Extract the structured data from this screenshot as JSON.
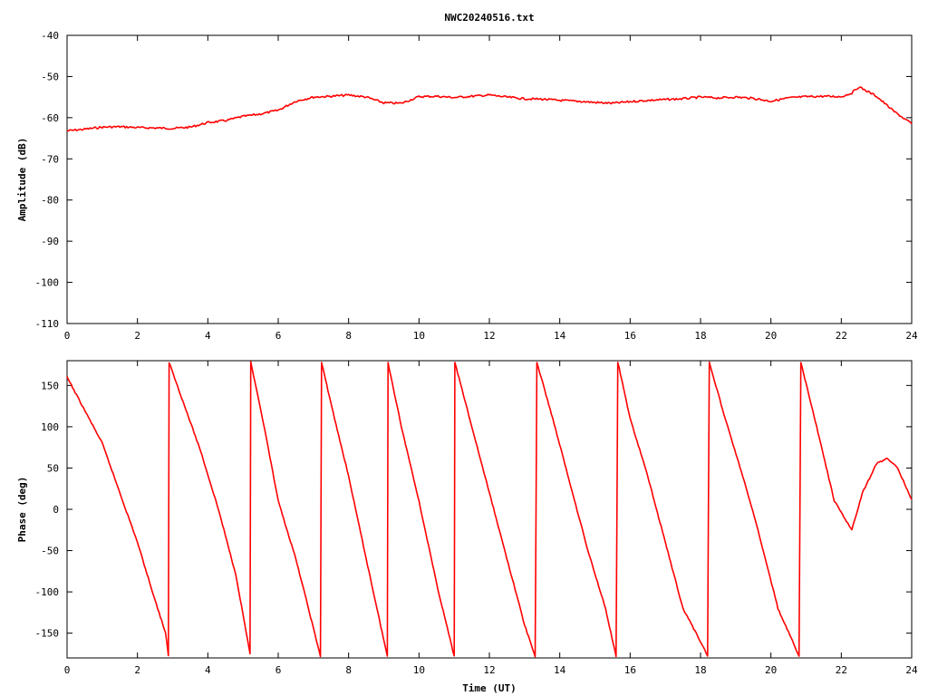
{
  "title": "NWC20240516.txt",
  "colors": {
    "trace": "#ff0000",
    "frame": "#000000",
    "background": "#ffffff"
  },
  "chart_data": [
    {
      "type": "line",
      "title": "NWC20240516.txt",
      "xlabel": "",
      "ylabel": "Amplitude (dB)",
      "xlim": [
        0,
        24
      ],
      "ylim": [
        -110,
        -40
      ],
      "xticks": [
        0,
        2,
        4,
        6,
        8,
        10,
        12,
        14,
        16,
        18,
        20,
        22,
        24
      ],
      "yticks": [
        -110,
        -100,
        -90,
        -80,
        -70,
        -60,
        -50,
        -40
      ],
      "grid": false,
      "legend": "none",
      "series": [
        {
          "color": "#ff0000",
          "x": [
            0,
            0.5,
            1,
            1.5,
            2,
            2.5,
            3,
            3.5,
            4,
            4.5,
            5,
            5.5,
            6,
            6.5,
            7,
            7.5,
            8,
            8.5,
            9,
            9.5,
            10,
            10.5,
            11,
            11.5,
            12,
            12.5,
            13,
            13.5,
            14,
            14.5,
            15,
            15.5,
            16,
            16.5,
            17,
            17.5,
            18,
            18.5,
            19,
            19.5,
            20,
            20.5,
            21,
            21.5,
            22,
            22.3,
            22.5,
            23,
            23.5,
            24
          ],
          "y": [
            -63.2,
            -62.8,
            -62.3,
            -62.2,
            -62.4,
            -62.5,
            -62.6,
            -62.3,
            -61.2,
            -60.7,
            -59.7,
            -59.1,
            -58.2,
            -56.0,
            -55.0,
            -54.8,
            -54.5,
            -55.0,
            -56.4,
            -56.5,
            -54.9,
            -54.8,
            -55.1,
            -54.8,
            -54.5,
            -55.0,
            -55.4,
            -55.5,
            -55.8,
            -56.0,
            -56.3,
            -56.5,
            -56.1,
            -55.8,
            -55.6,
            -55.4,
            -55.0,
            -55.2,
            -55.0,
            -55.3,
            -56.0,
            -55.2,
            -54.9,
            -54.8,
            -54.9,
            -54.0,
            -52.5,
            -54.8,
            -58.5,
            -61.5
          ]
        }
      ]
    },
    {
      "type": "line",
      "title": "",
      "xlabel": "Time (UT)",
      "ylabel": "Phase (deg)",
      "xlim": [
        0,
        24
      ],
      "ylim": [
        -180,
        180
      ],
      "xticks": [
        0,
        2,
        4,
        6,
        8,
        10,
        12,
        14,
        16,
        18,
        20,
        22,
        24
      ],
      "yticks": [
        -150,
        -100,
        -50,
        0,
        50,
        100,
        150
      ],
      "grid": false,
      "legend": "none",
      "phase_wrap_deg": [
        -180,
        180
      ],
      "series": [
        {
          "color": "#ff0000",
          "x": [
            0,
            0.5,
            1,
            1.5,
            2,
            2.5,
            2.8,
            2.88,
            2.9,
            3.3,
            3.8,
            4.3,
            4.8,
            5.2,
            5.22,
            5.6,
            6.0,
            6.5,
            6.8,
            7.2,
            7.23,
            7.6,
            8.0,
            8.5,
            9.1,
            9.12,
            9.5,
            10.0,
            10.5,
            11.0,
            11.02,
            11.5,
            12.0,
            12.5,
            13.0,
            13.3,
            13.35,
            13.8,
            14.3,
            14.8,
            15.3,
            15.6,
            15.65,
            16.0,
            16.5,
            17.0,
            17.5,
            18.0,
            18.2,
            18.25,
            18.7,
            19.2,
            19.6,
            20.2,
            20.8,
            20.85,
            21.3,
            21.8,
            22.3,
            22.6,
            23.0,
            23.3,
            23.6,
            24.0
          ],
          "y": [
            160,
            120,
            80,
            20,
            -40,
            -110,
            -150,
            -178,
            178,
            130,
            70,
            0,
            -80,
            -175,
            178,
            100,
            10,
            -60,
            -110,
            -178,
            178,
            110,
            40,
            -60,
            -178,
            178,
            100,
            10,
            -90,
            -178,
            178,
            100,
            20,
            -60,
            -140,
            -178,
            178,
            110,
            30,
            -50,
            -120,
            -178,
            178,
            110,
            40,
            -40,
            -120,
            -160,
            -178,
            178,
            110,
            40,
            -20,
            -120,
            -178,
            178,
            100,
            10,
            -25,
            20,
            55,
            62,
            50,
            12
          ]
        }
      ]
    }
  ]
}
